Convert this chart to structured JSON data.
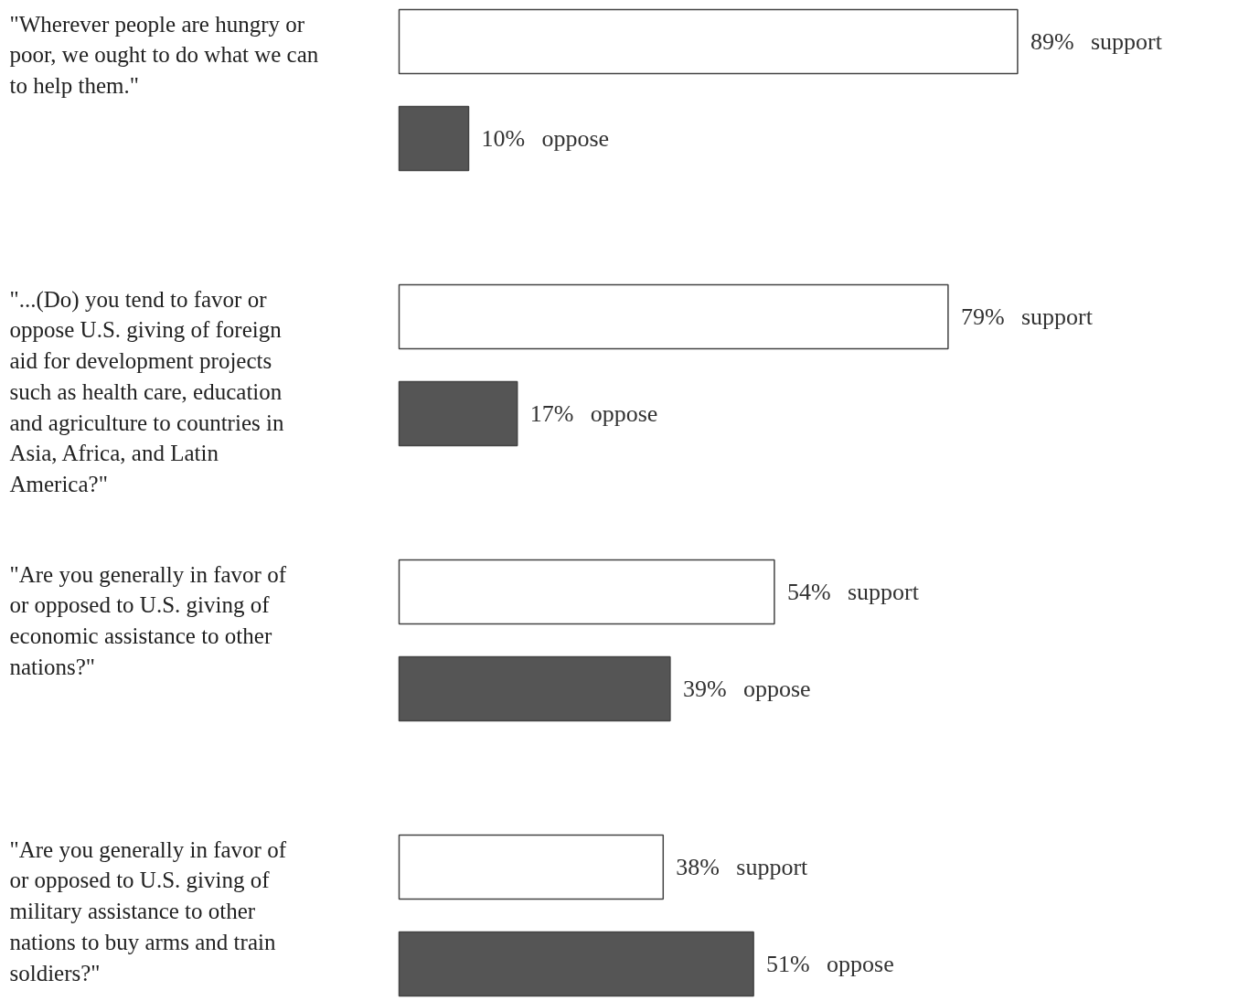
{
  "chart_data": {
    "type": "bar",
    "orientation": "horizontal",
    "tick_labels": false,
    "grid": false,
    "categories": [
      "\"Wherever people are hungry or poor, we ought to do what we can to help them.\"",
      "\"...(Do) you tend to favor or oppose U.S. giving of foreign aid for development projects such as health care, education and agriculture to countries in Asia, Africa, and Latin America?\"",
      "\"Are you generally in favor of or opposed to U.S. giving of economic assistance to other nations?\"",
      "\"Are you generally in favor of or opposed to U.S. giving of military assistance to other nations to buy arms and train soldiers?\""
    ],
    "series": [
      {
        "name": "support",
        "color": "#ffffff",
        "values": [
          89,
          79,
          54,
          38
        ],
        "value_labels": [
          "89%",
          "79%",
          "54%",
          "38%"
        ]
      },
      {
        "name": "oppose",
        "color": "#555555",
        "values": [
          10,
          17,
          39,
          51
        ],
        "value_labels": [
          "10%",
          "17%",
          "39%",
          "51%"
        ]
      }
    ]
  }
}
